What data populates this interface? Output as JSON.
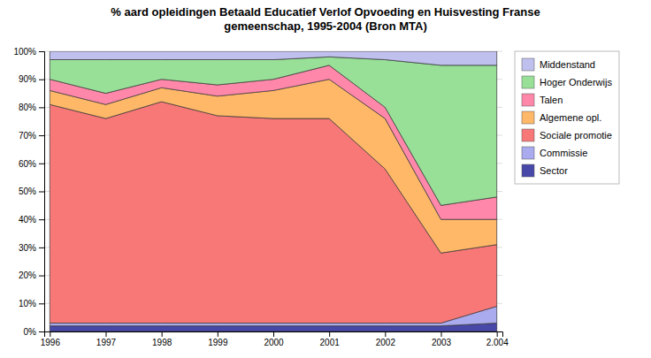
{
  "chart_data": {
    "type": "area",
    "title": "% aard opleidingen Betaald Educatief Verlof Opvoeding en Huisvesting Franse\ngemeenschap, 1995-2004 (Bron MTA)",
    "x": [
      1996,
      1997,
      1998,
      1999,
      2000,
      2001,
      2002,
      2003,
      2004
    ],
    "series": [
      {
        "name": "Sector",
        "color": "#4848a8",
        "values": [
          2.0,
          2.0,
          2.0,
          2.0,
          2.0,
          2.0,
          2.0,
          2.0,
          3.0
        ]
      },
      {
        "name": "Commissie",
        "color": "#aaaaee",
        "values": [
          1.0,
          1.0,
          1.0,
          1.0,
          1.0,
          1.0,
          1.0,
          1.0,
          6.0
        ]
      },
      {
        "name": "Sociale promotie",
        "color": "#f87878",
        "values": [
          78.0,
          73.0,
          79.0,
          74.0,
          73.0,
          73.0,
          55.0,
          25.0,
          22.0
        ]
      },
      {
        "name": "Algemene opl.",
        "color": "#ffb868",
        "values": [
          5.0,
          5.0,
          5.0,
          7.0,
          10.0,
          14.0,
          18.0,
          12.0,
          9.0
        ]
      },
      {
        "name": "Talen",
        "color": "#ff88aa",
        "values": [
          4.0,
          4.0,
          3.0,
          4.0,
          4.0,
          5.0,
          4.0,
          5.0,
          8.0
        ]
      },
      {
        "name": "Hoger Onderwijs",
        "color": "#98e098",
        "values": [
          7.0,
          12.0,
          7.0,
          9.0,
          7.0,
          3.0,
          17.0,
          50.0,
          47.0
        ]
      },
      {
        "name": "Middenstand",
        "color": "#c0c0ee",
        "values": [
          3.0,
          3.0,
          3.0,
          3.0,
          3.0,
          2.0,
          3.0,
          5.0,
          5.0
        ]
      }
    ],
    "stacked": true,
    "xlim": [
      1995.9,
      2004.1
    ],
    "xticks": [
      1996,
      1997,
      1998,
      1999,
      2000,
      2001,
      2002,
      2003,
      {
        "value": 2004,
        "label": "2.004"
      }
    ],
    "ylim": [
      0,
      100
    ],
    "yticks": [
      {
        "value": 0,
        "label": "0%"
      },
      {
        "value": 10,
        "label": "10%"
      },
      {
        "value": 20,
        "label": "20%"
      },
      {
        "value": 30,
        "label": "30%"
      },
      {
        "value": 40,
        "label": "40%"
      },
      {
        "value": 50,
        "label": "50%"
      },
      {
        "value": 60,
        "label": "60%"
      },
      {
        "value": 70,
        "label": "70%"
      },
      {
        "value": 80,
        "label": "80%"
      },
      {
        "value": 90,
        "label": "90%"
      },
      {
        "value": 100,
        "label": "100%"
      }
    ],
    "grid": true,
    "legend": "right"
  }
}
